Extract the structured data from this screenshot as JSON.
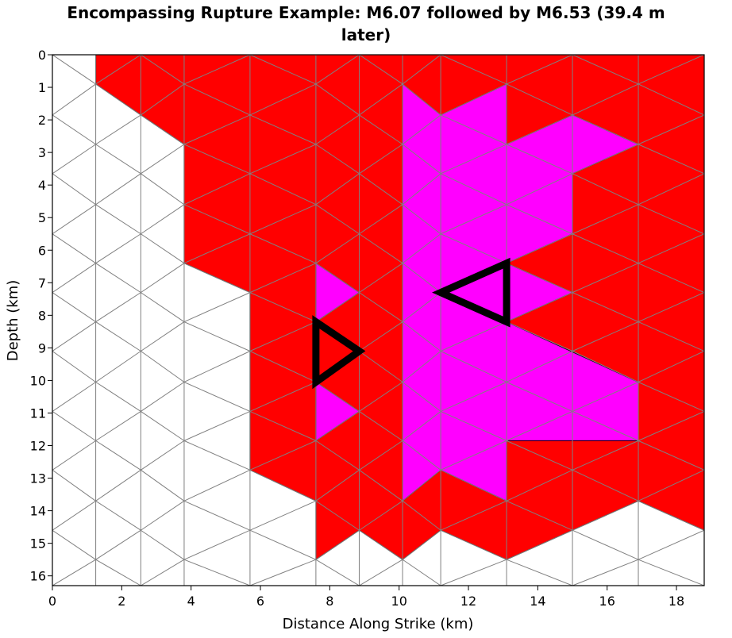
{
  "chart_data": {
    "type": "heatmap",
    "title_line1": "Encompassing Rupture Example: M6.07 followed by M6.53 (39.4 m",
    "title_line2": "later)",
    "xlabel": "Distance Along Strike (km)",
    "ylabel": "Depth (km)",
    "xlim": [
      0,
      18.8
    ],
    "ylim": [
      16.3,
      0
    ],
    "x_ticks": [
      0,
      2,
      4,
      6,
      8,
      10,
      12,
      14,
      16,
      18
    ],
    "y_ticks": [
      0,
      1,
      2,
      3,
      4,
      5,
      6,
      7,
      8,
      9,
      10,
      11,
      12,
      13,
      14,
      15,
      16
    ],
    "mesh": {
      "columns_x": [
        0,
        1.25,
        2.55,
        3.8,
        5.7,
        7.6,
        8.85,
        10.1,
        11.2,
        13.1,
        15.0,
        16.9,
        18.8
      ],
      "rows_y": [
        0,
        0.9,
        1.85,
        2.75,
        3.65,
        4.6,
        5.5,
        6.4,
        7.3,
        8.2,
        9.1,
        10.05,
        10.95,
        11.85,
        12.75,
        13.7,
        14.6,
        15.5,
        16.3
      ]
    },
    "series": [
      {
        "name": "M6.07",
        "color": "#ff00ff",
        "fill_regions": [
          [
            [
              10.1,
              0.9
            ],
            [
              11.2,
              1.85
            ],
            [
              13.1,
              0.9
            ],
            [
              13.1,
              2.75
            ],
            [
              15.0,
              1.85
            ],
            [
              16.9,
              2.75
            ],
            [
              15.0,
              3.65
            ],
            [
              15.0,
              5.5
            ],
            [
              13.1,
              6.4
            ],
            [
              15.0,
              7.3
            ],
            [
              13.1,
              8.2
            ],
            [
              16.9,
              10.05
            ],
            [
              16.9,
              11.85
            ],
            [
              13.1,
              11.85
            ],
            [
              13.1,
              13.7
            ],
            [
              11.2,
              12.75
            ],
            [
              10.1,
              13.7
            ]
          ],
          [
            [
              7.6,
              6.4
            ],
            [
              8.85,
              7.3
            ],
            [
              7.6,
              8.2
            ]
          ],
          [
            [
              7.6,
              10.05
            ],
            [
              8.85,
              10.95
            ],
            [
              7.6,
              11.85
            ]
          ]
        ]
      },
      {
        "name": "M6.53",
        "color": "#ff0000",
        "fill_regions": [
          [
            [
              1.25,
              0
            ],
            [
              18.8,
              0
            ],
            [
              18.8,
              14.6
            ],
            [
              16.9,
              13.7
            ],
            [
              15.0,
              14.6
            ],
            [
              13.1,
              15.5
            ],
            [
              11.2,
              14.6
            ],
            [
              10.1,
              15.5
            ],
            [
              8.85,
              14.6
            ],
            [
              7.6,
              15.5
            ],
            [
              7.6,
              13.7
            ],
            [
              5.7,
              12.75
            ],
            [
              5.7,
              7.3
            ],
            [
              3.8,
              6.4
            ],
            [
              3.8,
              2.75
            ],
            [
              2.55,
              1.85
            ],
            [
              1.25,
              0.9
            ]
          ]
        ]
      }
    ],
    "hypocenters": [
      {
        "name": "M6.07 hypocenter",
        "points": [
          [
            7.6,
            8.2
          ],
          [
            8.85,
            9.1
          ],
          [
            7.6,
            10.05
          ]
        ]
      },
      {
        "name": "M6.53 hypocenter",
        "points": [
          [
            13.1,
            6.4
          ],
          [
            13.1,
            8.2
          ],
          [
            11.2,
            7.3
          ]
        ]
      }
    ],
    "colors": {
      "red": "#ff0000",
      "magenta": "#ff00ff",
      "mesh": "#808080",
      "edge": "#000000"
    }
  }
}
